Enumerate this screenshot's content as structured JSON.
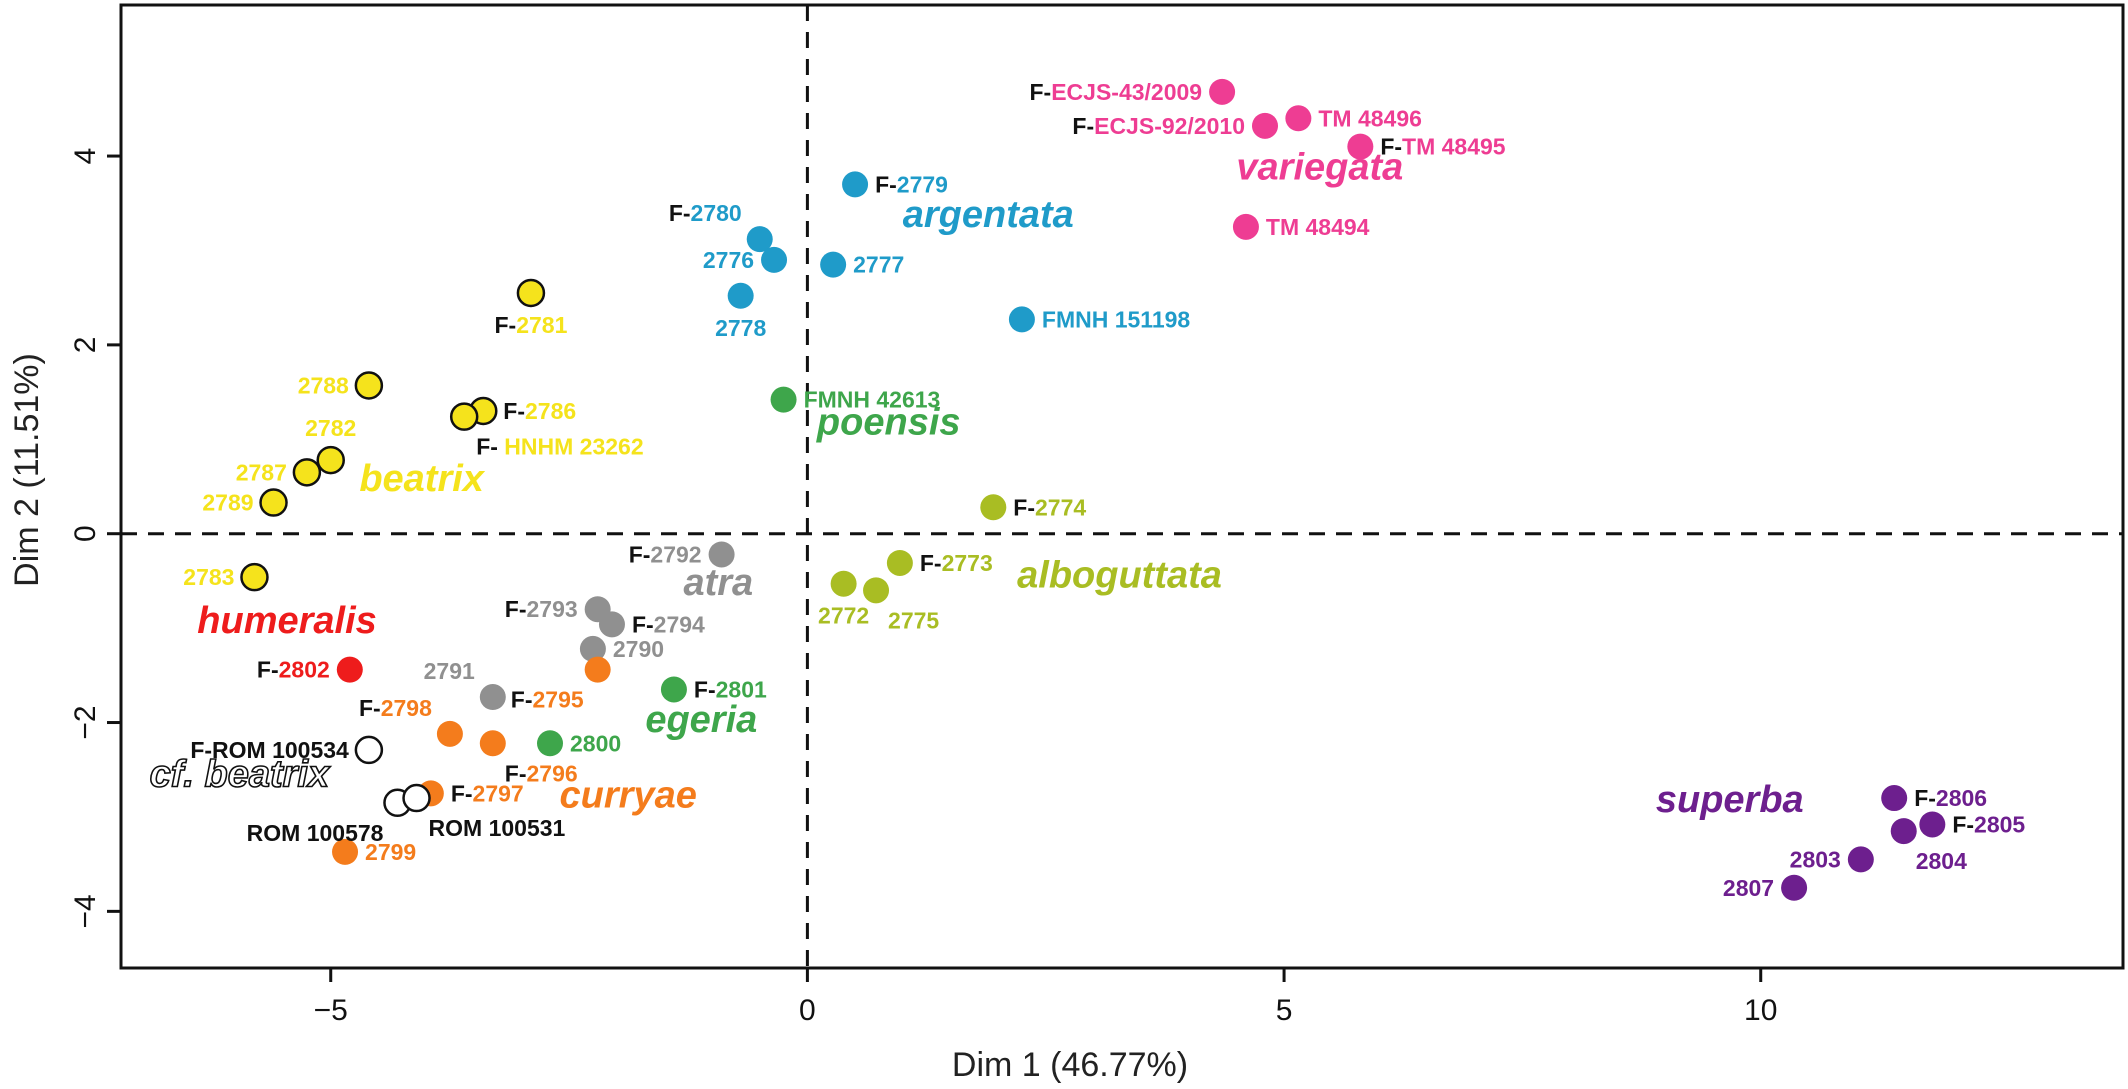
{
  "chart_data": {
    "type": "scatter",
    "xlabel": "Dim 1 (46.77%)",
    "ylabel": "Dim 2 (11.51%)",
    "xlim": [
      -7.2,
      13.8
    ],
    "ylim": [
      -4.6,
      5.6
    ],
    "xticks": [
      -5,
      0,
      5,
      10
    ],
    "yticks": [
      -4,
      -2,
      0,
      2,
      4
    ],
    "xtick_labels": [
      "−5",
      "0",
      "5",
      "10"
    ],
    "ytick_labels": [
      "−4",
      "−2",
      "0",
      "2",
      "4"
    ],
    "reference_lines": {
      "x": 0,
      "y": 0,
      "style": "dashed"
    },
    "grid": false,
    "colors": {
      "beatrix": "#f5e31c",
      "argentata": "#1f9bc9",
      "variegata": "#ee3d93",
      "poensis": "#3ea64b",
      "alboguttata": "#a9bd23",
      "atra": "#909090",
      "humeralis": "#ee1c1c",
      "curryae": "#f47c1c",
      "egeria": "#3ea64b",
      "cf_beatrix": "#ffffff",
      "superba": "#6d1f8e"
    },
    "groups": [
      {
        "name": "variegata",
        "color_key": "variegata",
        "label_x": 4.5,
        "label_y": 3.75
      },
      {
        "name": "argentata",
        "color_key": "argentata",
        "label_x": 1.0,
        "label_y": 3.25
      },
      {
        "name": "poensis",
        "color_key": "poensis",
        "label_x": 0.1,
        "label_y": 1.05
      },
      {
        "name": "beatrix",
        "color_key": "beatrix",
        "label_x": -4.7,
        "label_y": 0.45
      },
      {
        "name": "alboguttata",
        "color_key": "alboguttata",
        "label_x": 2.2,
        "label_y": -0.57
      },
      {
        "name": "atra",
        "color_key": "atra",
        "label_x": -1.3,
        "label_y": -0.65
      },
      {
        "name": "humeralis",
        "color_key": "humeralis",
        "label_x": -6.4,
        "label_y": -1.05
      },
      {
        "name": "egeria",
        "color_key": "egeria",
        "label_x": -1.7,
        "label_y": -2.1
      },
      {
        "name": "cf. beatrix",
        "color_key": "cf_beatrix",
        "label_x": -6.9,
        "label_y": -2.68,
        "outlined": true
      },
      {
        "name": "curryae",
        "color_key": "curryae",
        "label_x": -2.6,
        "label_y": -2.9
      },
      {
        "name": "superba",
        "color_key": "superba",
        "label_x": 8.9,
        "label_y": -2.95
      }
    ],
    "points": [
      {
        "x": 4.35,
        "y": 4.68,
        "color_key": "variegata",
        "prefix": "F-",
        "id": "ECJS-43/2009",
        "anchor": "left"
      },
      {
        "x": 5.15,
        "y": 4.4,
        "color_key": "variegata",
        "prefix": "",
        "id": "TM 48496",
        "anchor": "right"
      },
      {
        "x": 4.8,
        "y": 4.32,
        "color_key": "variegata",
        "prefix": "F-",
        "id": "ECJS-92/2010",
        "anchor": "left"
      },
      {
        "x": 5.8,
        "y": 4.1,
        "color_key": "variegata",
        "prefix": "F-",
        "id": "TM 48495",
        "anchor": "right"
      },
      {
        "x": 4.6,
        "y": 3.25,
        "color_key": "variegata",
        "prefix": "",
        "id": "TM 48494",
        "anchor": "right"
      },
      {
        "x": 0.5,
        "y": 3.7,
        "color_key": "argentata",
        "prefix": "F-",
        "id": "2779",
        "anchor": "right"
      },
      {
        "x": -0.5,
        "y": 3.12,
        "color_key": "argentata",
        "prefix": "F-",
        "id": "2780",
        "anchor": "upleft"
      },
      {
        "x": -0.35,
        "y": 2.9,
        "color_key": "argentata",
        "prefix": "",
        "id": "2776",
        "anchor": "left"
      },
      {
        "x": 0.27,
        "y": 2.85,
        "color_key": "argentata",
        "prefix": "",
        "id": "2777",
        "anchor": "right"
      },
      {
        "x": -0.7,
        "y": 2.52,
        "color_key": "argentata",
        "prefix": "",
        "id": "2778",
        "anchor": "below"
      },
      {
        "x": 2.25,
        "y": 2.27,
        "color_key": "argentata",
        "prefix": "",
        "id": "FMNH 151198",
        "anchor": "right"
      },
      {
        "x": -0.25,
        "y": 1.42,
        "color_key": "poensis",
        "prefix": "",
        "id": "FMNH 42613",
        "anchor": "right"
      },
      {
        "x": -2.9,
        "y": 2.55,
        "color_key": "beatrix",
        "prefix": "F-",
        "id": "2781",
        "anchor": "below",
        "outlined": true
      },
      {
        "x": -4.6,
        "y": 1.57,
        "color_key": "beatrix",
        "prefix": "",
        "id": "2788",
        "anchor": "left",
        "outlined": true
      },
      {
        "x": -3.4,
        "y": 1.3,
        "color_key": "beatrix",
        "prefix": "F-",
        "id": "2786",
        "anchor": "right",
        "outlined": true
      },
      {
        "x": -3.6,
        "y": 1.24,
        "color_key": "beatrix",
        "prefix": "F- ",
        "id": "HNHM 23262",
        "anchor": "belowright",
        "outlined": true
      },
      {
        "x": -5.0,
        "y": 0.78,
        "color_key": "beatrix",
        "prefix": "",
        "id": "2782",
        "anchor": "above",
        "outlined": true
      },
      {
        "x": -5.25,
        "y": 0.65,
        "color_key": "beatrix",
        "prefix": "",
        "id": "2787",
        "anchor": "left",
        "outlined": true
      },
      {
        "x": -5.6,
        "y": 0.33,
        "color_key": "beatrix",
        "prefix": "",
        "id": "2789",
        "anchor": "left",
        "outlined": true
      },
      {
        "x": -5.8,
        "y": -0.46,
        "color_key": "beatrix",
        "prefix": "",
        "id": "2783",
        "anchor": "left",
        "outlined": true
      },
      {
        "x": 1.95,
        "y": 0.28,
        "color_key": "alboguttata",
        "prefix": "F-",
        "id": "2774",
        "anchor": "right"
      },
      {
        "x": 0.97,
        "y": -0.31,
        "color_key": "alboguttata",
        "prefix": "F-",
        "id": "2773",
        "anchor": "right"
      },
      {
        "x": 0.38,
        "y": -0.53,
        "color_key": "alboguttata",
        "prefix": "",
        "id": "2772",
        "anchor": "below"
      },
      {
        "x": 0.72,
        "y": -0.6,
        "color_key": "alboguttata",
        "prefix": "",
        "id": "2775",
        "anchor": "belowright"
      },
      {
        "x": -0.9,
        "y": -0.22,
        "color_key": "atra",
        "prefix": "F-",
        "id": "2792",
        "anchor": "left"
      },
      {
        "x": -2.2,
        "y": -0.8,
        "color_key": "atra",
        "prefix": "F-",
        "id": "2793",
        "anchor": "left"
      },
      {
        "x": -2.05,
        "y": -0.96,
        "color_key": "atra",
        "prefix": "F-",
        "id": "2794",
        "anchor": "right"
      },
      {
        "x": -2.25,
        "y": -1.22,
        "color_key": "atra",
        "prefix": "",
        "id": "2790",
        "anchor": "right"
      },
      {
        "x": -3.3,
        "y": -1.73,
        "color_key": "atra",
        "prefix": "",
        "id": "2791",
        "anchor": "upleft"
      },
      {
        "x": -4.8,
        "y": -1.44,
        "color_key": "humeralis",
        "prefix": "F-",
        "id": "2802",
        "anchor": "left"
      },
      {
        "x": -2.2,
        "y": -1.44,
        "color_key": "curryae",
        "prefix": "F-",
        "id": "2795",
        "anchor": "belowleft"
      },
      {
        "x": -3.75,
        "y": -2.12,
        "color_key": "curryae",
        "prefix": "F-",
        "id": "2798",
        "anchor": "upleft"
      },
      {
        "x": -3.3,
        "y": -2.22,
        "color_key": "curryae",
        "prefix": "F-",
        "id": "2796",
        "anchor": "belowright"
      },
      {
        "x": -3.95,
        "y": -2.75,
        "color_key": "curryae",
        "prefix": "F-",
        "id": "2797",
        "anchor": "right"
      },
      {
        "x": -4.85,
        "y": -3.37,
        "color_key": "curryae",
        "prefix": "",
        "id": "2799",
        "anchor": "right"
      },
      {
        "x": -1.4,
        "y": -1.65,
        "color_key": "egeria",
        "prefix": "F-",
        "id": "2801",
        "anchor": "right"
      },
      {
        "x": -2.7,
        "y": -2.22,
        "color_key": "egeria",
        "prefix": "",
        "id": "2800",
        "anchor": "right"
      },
      {
        "x": -4.6,
        "y": -2.29,
        "color_key": "cf_beatrix",
        "prefix": "F-",
        "id": "ROM 100534",
        "anchor": "left",
        "outlined": true,
        "black_label": true
      },
      {
        "x": -4.3,
        "y": -2.85,
        "color_key": "cf_beatrix",
        "prefix": "",
        "id": "ROM 100578",
        "anchor": "belowleft",
        "outlined": true,
        "black_label": true
      },
      {
        "x": -4.1,
        "y": -2.8,
        "color_key": "cf_beatrix",
        "prefix": "",
        "id": "ROM 100531",
        "anchor": "belowright",
        "outlined": true,
        "black_label": true
      },
      {
        "x": 11.4,
        "y": -2.8,
        "color_key": "superba",
        "prefix": "F-",
        "id": "2806",
        "anchor": "right"
      },
      {
        "x": 11.8,
        "y": -3.08,
        "color_key": "superba",
        "prefix": "F-",
        "id": "2805",
        "anchor": "right"
      },
      {
        "x": 11.5,
        "y": -3.15,
        "color_key": "superba",
        "prefix": "",
        "id": "2804",
        "anchor": "belowright"
      },
      {
        "x": 11.05,
        "y": -3.45,
        "color_key": "superba",
        "prefix": "",
        "id": "2803",
        "anchor": "left"
      },
      {
        "x": 10.35,
        "y": -3.75,
        "color_key": "superba",
        "prefix": "",
        "id": "2807",
        "anchor": "left"
      }
    ]
  }
}
